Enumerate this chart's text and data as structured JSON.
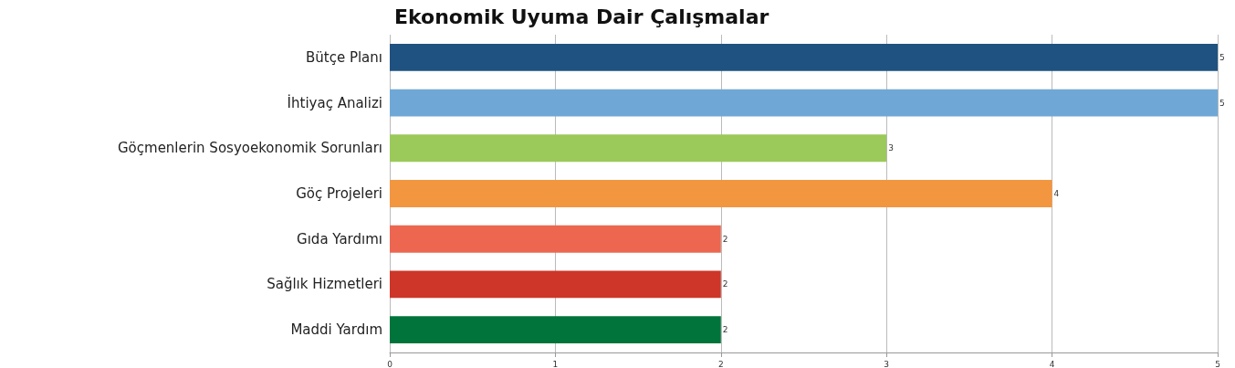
{
  "chart_data": {
    "type": "bar",
    "orientation": "horizontal",
    "title": "Ekonomik Uyuma Dair Çalışmalar",
    "categories": [
      "Bütçe Planı",
      "İhtiyaç Analizi",
      "Göçmenlerin Sosyoekonomik Sorunları",
      "Göç Projeleri",
      "Gıda Yardımı",
      "Sağlık Hizmetleri",
      "Maddi Yardım"
    ],
    "values": [
      5,
      5,
      3,
      4,
      2,
      2,
      2
    ],
    "colors": [
      "#1f5280",
      "#6fa8d6",
      "#9bc95a",
      "#f39640",
      "#ec6650",
      "#cd3628",
      "#00743a"
    ],
    "xlim": [
      0,
      5
    ],
    "xticks": [
      0,
      1,
      2,
      3,
      4,
      5
    ],
    "grid": "x",
    "data_labels": true
  }
}
